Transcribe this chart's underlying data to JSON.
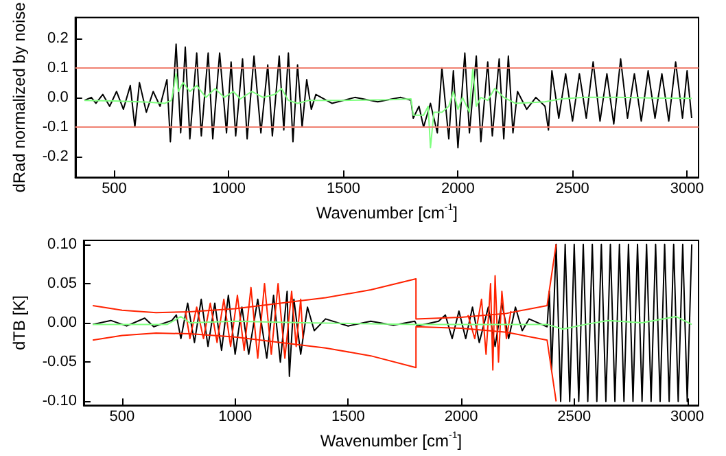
{
  "chart_data": [
    {
      "type": "line",
      "xlabel": "Wavenumber [cm$^{-1}$]",
      "ylabel": "dRad normalized by noise",
      "xlim": [
        330,
        3050
      ],
      "ylim": [
        -0.27,
        0.27
      ],
      "xticks": [
        500,
        1000,
        1500,
        2000,
        2500,
        3000
      ],
      "yticks": [
        {
          "value": -0.2,
          "label": "-0.2"
        },
        {
          "value": -0.1,
          "label": "-0.1"
        },
        {
          "value": 0,
          "label": "0.0"
        },
        {
          "value": 0.1,
          "label": "0.1"
        },
        {
          "value": 0.2,
          "label": "0.2"
        }
      ],
      "ref_lines": [
        {
          "axis": "y",
          "value": 0.1,
          "color": "#f08070"
        },
        {
          "axis": "y",
          "value": -0.1,
          "color": "#f08070"
        }
      ],
      "series": [
        {
          "color": "#000000",
          "x": [
            370,
            400,
            420,
            450,
            480,
            510,
            540,
            570,
            590,
            610,
            640,
            670,
            700,
            730,
            745,
            770,
            790,
            810,
            830,
            860,
            880,
            910,
            930,
            960,
            990,
            1010,
            1030,
            1060,
            1080,
            1110,
            1140,
            1170,
            1190,
            1220,
            1240,
            1260,
            1280,
            1300,
            1320,
            1340,
            1360,
            1380,
            1450,
            1550,
            1650,
            1750,
            1795,
            1805,
            1830,
            1850,
            1880,
            1910,
            1930,
            1960,
            1980,
            2000,
            2030,
            2050,
            2080,
            2100,
            2130,
            2150,
            2180,
            2200,
            2220,
            2240,
            2260,
            2300,
            2340,
            2380,
            2395,
            2410,
            2440,
            2470,
            2500,
            2530,
            2560,
            2590,
            2620,
            2650,
            2680,
            2710,
            2740,
            2770,
            2800,
            2830,
            2860,
            2890,
            2920,
            2950,
            2980,
            3000,
            3020
          ],
          "values": [
            -0.01,
            0.0,
            -0.02,
            0.01,
            -0.03,
            0.02,
            -0.04,
            0.04,
            -0.1,
            0.05,
            -0.05,
            0.02,
            -0.03,
            0.06,
            -0.15,
            0.18,
            -0.12,
            0.17,
            -0.14,
            0.15,
            -0.13,
            0.15,
            -0.14,
            0.15,
            -0.12,
            0.12,
            -0.13,
            0.13,
            -0.14,
            0.14,
            -0.12,
            0.11,
            -0.13,
            0.14,
            -0.11,
            0.15,
            -0.15,
            0.11,
            -0.1,
            0.06,
            -0.04,
            0.01,
            -0.02,
            0.0,
            -0.015,
            0.0,
            -0.01,
            -0.07,
            -0.03,
            -0.1,
            -0.02,
            -0.12,
            0.1,
            -0.14,
            0.09,
            -0.17,
            0.15,
            -0.12,
            0.14,
            -0.15,
            0.12,
            -0.13,
            0.13,
            -0.14,
            0.14,
            -0.12,
            0.02,
            -0.04,
            0.0,
            -0.03,
            -0.11,
            0.09,
            -0.07,
            0.08,
            -0.08,
            0.08,
            -0.07,
            0.12,
            -0.08,
            0.08,
            -0.09,
            0.13,
            -0.07,
            0.08,
            -0.08,
            0.09,
            -0.07,
            0.08,
            -0.08,
            0.12,
            -0.07,
            0.09,
            -0.07
          ]
        },
        {
          "color": "#80ff80",
          "x": [
            370,
            500,
            650,
            720,
            750,
            770,
            780,
            800,
            830,
            860,
            900,
            940,
            980,
            1020,
            1050,
            1100,
            1150,
            1200,
            1230,
            1260,
            1300,
            1350,
            1500,
            1700,
            1795,
            1805,
            1850,
            1870,
            1880,
            1895,
            1930,
            1960,
            1980,
            2000,
            2020,
            2050,
            2065,
            2080,
            2100,
            2130,
            2160,
            2200,
            2250,
            2380,
            2450,
            2550,
            2700,
            2850,
            3020
          ],
          "values": [
            -0.01,
            -0.012,
            -0.016,
            -0.02,
            -0.01,
            0.08,
            0.02,
            0.05,
            0.02,
            0.04,
            0.0,
            0.03,
            0.0,
            0.02,
            -0.005,
            0.02,
            0.0,
            0.01,
            0.03,
            -0.01,
            -0.02,
            -0.01,
            -0.01,
            -0.008,
            -0.005,
            -0.06,
            -0.06,
            -0.03,
            -0.17,
            -0.05,
            -0.05,
            -0.03,
            0.02,
            -0.04,
            0.0,
            -0.05,
            0.1,
            -0.03,
            0.0,
            -0.01,
            0.03,
            0.0,
            -0.02,
            -0.015,
            -0.005,
            0.0,
            0.0,
            -0.002,
            -0.003
          ]
        }
      ]
    },
    {
      "type": "line",
      "xlabel": "Wavenumber [cm$^{-1}$]",
      "ylabel": "dTB [K]",
      "xlim": [
        330,
        3050
      ],
      "ylim": [
        -0.105,
        0.105
      ],
      "xticks": [
        500,
        1000,
        1500,
        2000,
        2500,
        3000
      ],
      "yticks": [
        {
          "value": -0.1,
          "label": "-0.10"
        },
        {
          "value": -0.05,
          "label": "-0.05"
        },
        {
          "value": 0,
          "label": "0.00"
        },
        {
          "value": 0.05,
          "label": "0.05"
        },
        {
          "value": 0.1,
          "label": "0.10"
        }
      ],
      "series": [
        {
          "color": "#000000",
          "x": [
            370,
            450,
            520,
            600,
            640,
            720,
            740,
            760,
            790,
            820,
            850,
            880,
            910,
            940,
            970,
            1000,
            1030,
            1060,
            1100,
            1140,
            1170,
            1200,
            1230,
            1240,
            1260,
            1290,
            1320,
            1350,
            1400,
            1500,
            1600,
            1700,
            1795,
            1805,
            1900,
            1930,
            1960,
            1990,
            2020,
            2050,
            2080,
            2120,
            2150,
            2180,
            2210,
            2240,
            2270,
            2300,
            2380,
            2390,
            2400,
            2420,
            2440,
            2460,
            2480,
            2500,
            2520,
            2540,
            2560,
            2580,
            2600,
            2620,
            2640,
            2660,
            2680,
            2700,
            2720,
            2740,
            2760,
            2780,
            2800,
            2820,
            2840,
            2860,
            2880,
            2900,
            2920,
            2940,
            2960,
            2980,
            3000,
            3020
          ],
          "values": [
            -0.002,
            0.003,
            -0.004,
            0.006,
            -0.005,
            0.003,
            0.01,
            -0.02,
            0.025,
            -0.025,
            0.03,
            -0.03,
            0.025,
            -0.035,
            0.035,
            -0.04,
            0.02,
            -0.04,
            0.03,
            -0.045,
            0.035,
            -0.05,
            0.04,
            -0.068,
            0.03,
            -0.04,
            0.02,
            -0.01,
            0.005,
            -0.004,
            0.002,
            -0.003,
            0.002,
            -0.004,
            0.002,
            0.01,
            -0.02,
            0.015,
            -0.02,
            0.02,
            -0.025,
            0.02,
            -0.03,
            0.025,
            -0.02,
            0.02,
            -0.01,
            0.005,
            -0.005,
            0.04,
            -0.06,
            0.1,
            -0.1,
            0.1,
            -0.1,
            0.1,
            -0.1,
            0.1,
            -0.1,
            0.1,
            -0.1,
            0.1,
            -0.1,
            0.1,
            -0.1,
            0.1,
            -0.1,
            0.1,
            -0.1,
            0.1,
            -0.1,
            0.1,
            -0.1,
            0.1,
            -0.1,
            0.1,
            -0.1,
            0.1,
            -0.1,
            0.1,
            -0.1,
            0.1
          ]
        },
        {
          "color": "#ff2200",
          "x": [
            780,
            800,
            830,
            860,
            890,
            920,
            950,
            980,
            1010,
            1040,
            1070,
            1100,
            1130,
            1160,
            1190,
            1220,
            1250,
            1270,
            1290,
            1300,
            1600,
            2030,
            2060,
            2090,
            2110,
            2130,
            2140,
            2150,
            2165,
            2180,
            2200,
            2220
          ],
          "values": [
            0.015,
            -0.02,
            0.02,
            -0.02,
            0.025,
            -0.025,
            0.03,
            -0.03,
            0.035,
            -0.035,
            0.045,
            -0.045,
            0.05,
            -0.04,
            0.05,
            -0.045,
            0.04,
            -0.03,
            0.03,
            -0.02,
            null,
            0.01,
            -0.02,
            0.03,
            -0.04,
            0.05,
            -0.06,
            0.06,
            -0.05,
            0.04,
            -0.02,
            0.015
          ]
        },
        {
          "color": "#ff2200",
          "x": [
            370,
            500,
            650,
            800,
            1000,
            1200,
            1400,
            1600,
            1800,
            1800,
            2000,
            2200,
            2380,
            2420
          ],
          "values": [
            0.022,
            0.016,
            0.013,
            0.014,
            0.018,
            0.025,
            0.032,
            0.042,
            0.056,
            0.005,
            0.007,
            0.012,
            0.022,
            0.1
          ]
        },
        {
          "color": "#ff2200",
          "x": [
            370,
            500,
            650,
            800,
            1000,
            1200,
            1400,
            1600,
            1800,
            1800,
            2000,
            2200,
            2380,
            2420
          ],
          "values": [
            -0.022,
            -0.016,
            -0.013,
            -0.014,
            -0.018,
            -0.025,
            -0.032,
            -0.042,
            -0.057,
            -0.005,
            -0.007,
            -0.012,
            -0.022,
            -0.1
          ]
        },
        {
          "color": "#80ff80",
          "x": [
            370,
            700,
            760,
            800,
            1000,
            1300,
            1800,
            2380,
            2450,
            2550,
            2650,
            2800,
            2950,
            3020
          ],
          "values": [
            -0.002,
            -0.002,
            0.008,
            0.0,
            0.002,
            0.0,
            -0.002,
            -0.002,
            -0.008,
            -0.002,
            0.003,
            0.0,
            0.008,
            -0.002
          ]
        }
      ]
    }
  ]
}
